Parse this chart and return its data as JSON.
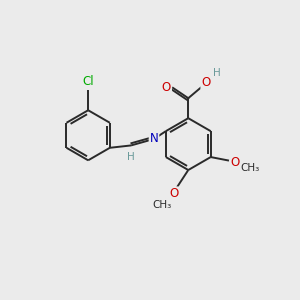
{
  "bg_color": "#ebebeb",
  "bond_color": "#2a2a2a",
  "bond_width": 1.4,
  "atom_colors": {
    "C": "#2a2a2a",
    "H": "#6a9a9a",
    "O": "#cc0000",
    "N": "#0000bb",
    "Cl": "#00aa00"
  },
  "font_size": 8.5,
  "fig_size": [
    3.0,
    3.0
  ],
  "dpi": 100,
  "xlim": [
    0,
    10
  ],
  "ylim": [
    0,
    10
  ]
}
